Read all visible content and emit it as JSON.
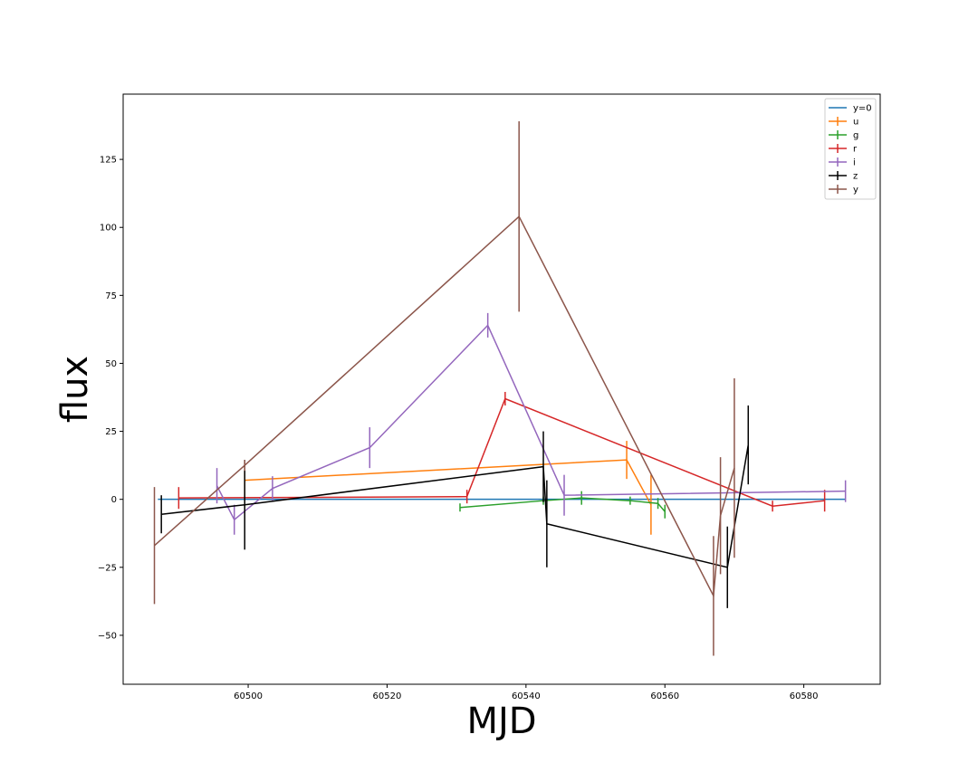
{
  "chart_data": {
    "type": "line",
    "title": "",
    "xlabel": "MJD",
    "ylabel": "flux",
    "xlim": [
      60482,
      60591
    ],
    "ylim": [
      -68,
      149
    ],
    "xticks": [
      60500,
      60520,
      60540,
      60560,
      60580
    ],
    "yticks": [
      -50,
      -25,
      0,
      25,
      50,
      75,
      100,
      125
    ],
    "grid": false,
    "legend_position": "top-right",
    "baseline": {
      "name": "y=0",
      "color": "#1f77b4",
      "x": [
        60487,
        60586
      ],
      "y": [
        0,
        0
      ]
    },
    "series": [
      {
        "name": "u",
        "color": "#ff7f0e",
        "points": [
          {
            "x": 60499.5,
            "y": 7,
            "err": 7
          },
          {
            "x": 60554.5,
            "y": 14.5,
            "err": 7
          },
          {
            "x": 60558,
            "y": -2,
            "err": 11
          }
        ]
      },
      {
        "name": "g",
        "color": "#2ca02c",
        "points": [
          {
            "x": 60530.5,
            "y": -3,
            "err": 1.5
          },
          {
            "x": 60542.5,
            "y": -0.5,
            "err": 1.5
          },
          {
            "x": 60548,
            "y": 0.5,
            "err": 2.5
          },
          {
            "x": 60555,
            "y": -0.5,
            "err": 1.5
          },
          {
            "x": 60559,
            "y": -1.5,
            "err": 2
          },
          {
            "x": 60560,
            "y": -4.5,
            "err": 2.5
          }
        ]
      },
      {
        "name": "r",
        "color": "#d62728",
        "points": [
          {
            "x": 60490,
            "y": 0.5,
            "err": 4
          },
          {
            "x": 60531.5,
            "y": 1,
            "err": 2.5
          },
          {
            "x": 60537,
            "y": 37,
            "err": 2.5
          },
          {
            "x": 60575.5,
            "y": -2.5,
            "err": 2
          },
          {
            "x": 60583,
            "y": -0.5,
            "err": 4
          }
        ]
      },
      {
        "name": "i",
        "color": "#9467bd",
        "points": [
          {
            "x": 60495.5,
            "y": 5,
            "err": 6.5
          },
          {
            "x": 60498,
            "y": -7.5,
            "err": 5.5
          },
          {
            "x": 60503.5,
            "y": 4,
            "err": 4.5
          },
          {
            "x": 60517.5,
            "y": 19,
            "err": 7.5
          },
          {
            "x": 60534.5,
            "y": 64,
            "err": 4.5
          },
          {
            "x": 60545.5,
            "y": 1.5,
            "err": 7.5
          },
          {
            "x": 60586,
            "y": 3,
            "err": 4
          }
        ]
      },
      {
        "name": "z",
        "color": "#000000",
        "points": [
          {
            "x": 60487.5,
            "y": -5.5,
            "err": 7
          },
          {
            "x": 60499.5,
            "y": -2,
            "err": 16.5
          },
          {
            "x": 60542.5,
            "y": 12,
            "err": 13
          },
          {
            "x": 60543,
            "y": -9,
            "err": 16
          },
          {
            "x": 60569,
            "y": -25,
            "err": 15
          },
          {
            "x": 60572,
            "y": 20,
            "err": 14.5
          }
        ]
      },
      {
        "name": "y",
        "color": "#8c564b",
        "points": [
          {
            "x": 60486.5,
            "y": -17,
            "err": 21.5
          },
          {
            "x": 60499.5,
            "y": 12.5,
            "err": 2
          },
          {
            "x": 60539,
            "y": 104,
            "err": 35
          },
          {
            "x": 60567,
            "y": -35.5,
            "err": 22
          },
          {
            "x": 60568,
            "y": -6,
            "err": 21.5
          },
          {
            "x": 60570,
            "y": 11.5,
            "err": 33
          }
        ]
      }
    ]
  }
}
